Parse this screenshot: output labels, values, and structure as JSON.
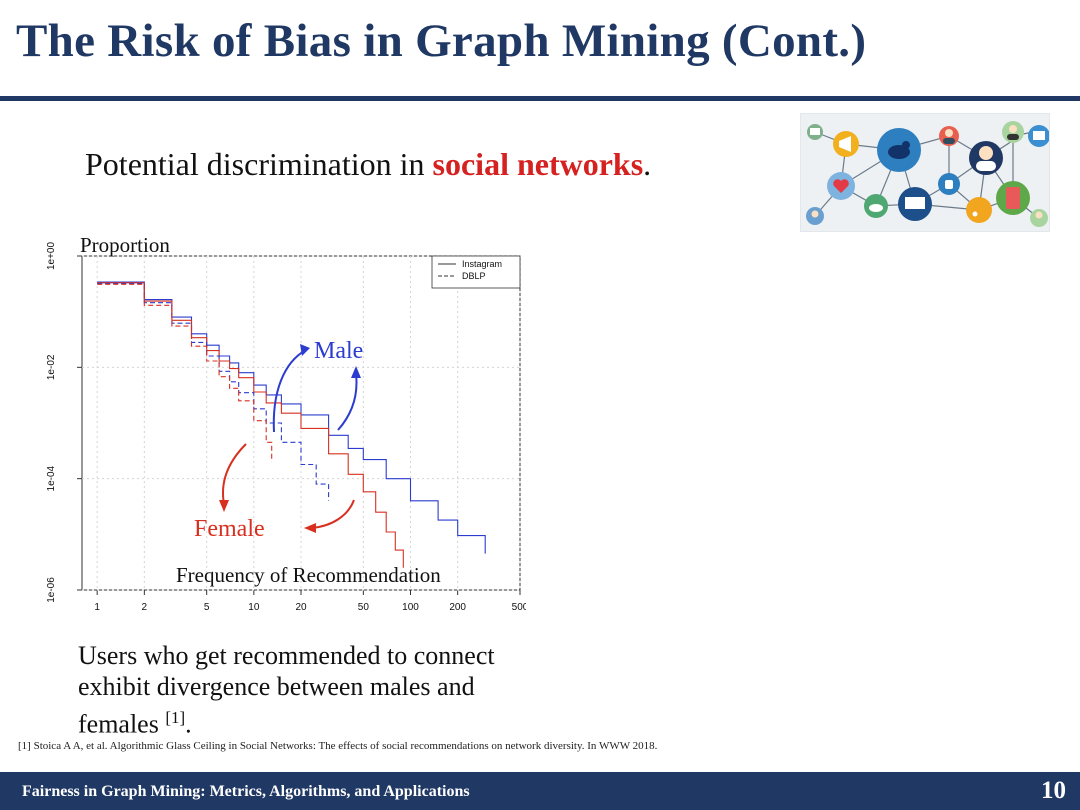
{
  "slide": {
    "title": "The Risk of Bias in Graph Mining (Cont.)",
    "subtitle_prefix": "Potential discrimination in ",
    "subtitle_highlight": "social networks",
    "subtitle_suffix": ".",
    "description": "Users who get recommended to connect exhibit divergence between males and females",
    "description_ref": "[1]",
    "description_end": ".",
    "reference": "[1] Stoica A A, et al. Algorithmic Glass Ceiling in Social Networks: The effects of social recommendations on network diversity. In WWW 2018.",
    "footer": "Fairness in Graph Mining: Metrics, Algorithms, and Applications",
    "page_number": "10"
  },
  "colors": {
    "title": "#1f3864",
    "highlight": "#d62121",
    "male": "#2b3ccf",
    "female": "#d83020"
  },
  "icons": [
    "envelope-icon",
    "megaphone-icon",
    "twitter-bird-icon",
    "user-icon",
    "user-icon",
    "video-icon",
    "heart-icon",
    "thumbs-up-icon",
    "phone-icon",
    "cloud-icon",
    "laptop-icon",
    "rss-icon",
    "user-icon"
  ],
  "chart_data": {
    "type": "line",
    "xscale": "log",
    "yscale": "log",
    "xlim": [
      0.8,
      500
    ],
    "ylim": [
      1e-06,
      1
    ],
    "x_ticks": [
      "1",
      "2",
      "5",
      "10",
      "20",
      "50",
      "100",
      "200",
      "500"
    ],
    "y_ticks": [
      "1e+00",
      "1e-02",
      "1e-04",
      "1e-06"
    ],
    "ylabel": "Proportion",
    "xlabel": "Frequency of Recommendation",
    "legend": {
      "placement": "top-right",
      "entries": [
        {
          "label": "Instagram",
          "style": "solid"
        },
        {
          "label": "DBLP",
          "style": "dashed"
        }
      ]
    },
    "annotations": [
      {
        "text": "Male",
        "color": "#2b3ccf"
      },
      {
        "text": "Female",
        "color": "#d83020"
      }
    ],
    "series": [
      {
        "dataset": "Instagram",
        "group": "Male",
        "style": "solid",
        "color": "#2b3ccf",
        "x": [
          1,
          2,
          3,
          4,
          5,
          6,
          7,
          8,
          10,
          12,
          15,
          20,
          30,
          40,
          50,
          70,
          100,
          150,
          200,
          300
        ],
        "y": [
          0.34,
          0.165,
          0.08,
          0.04,
          0.025,
          0.016,
          0.012,
          0.008,
          0.0048,
          0.0032,
          0.0022,
          0.0014,
          0.0006,
          0.00035,
          0.00022,
          0.0001,
          4e-05,
          1.8e-05,
          9.5e-06,
          4.5e-06
        ]
      },
      {
        "dataset": "Instagram",
        "group": "Female",
        "style": "solid",
        "color": "#d83020",
        "x": [
          1,
          2,
          3,
          4,
          5,
          6,
          7,
          8,
          10,
          12,
          15,
          20,
          30,
          40,
          50,
          60,
          70,
          80,
          90
        ],
        "y": [
          0.33,
          0.155,
          0.07,
          0.034,
          0.02,
          0.013,
          0.0095,
          0.0065,
          0.0036,
          0.0023,
          0.0015,
          0.0008,
          0.00028,
          0.00012,
          5.8e-05,
          2.5e-05,
          1.1e-05,
          5.2e-06,
          2.5e-06
        ]
      },
      {
        "dataset": "DBLP",
        "group": "Male",
        "style": "dashed",
        "color": "#2b3ccf",
        "x": [
          1,
          2,
          3,
          4,
          5,
          6,
          7,
          8,
          10,
          12,
          15,
          20,
          25,
          30
        ],
        "y": [
          0.32,
          0.145,
          0.062,
          0.028,
          0.016,
          0.0085,
          0.0055,
          0.0035,
          0.0018,
          0.001,
          0.00045,
          0.00018,
          8e-05,
          4e-05
        ]
      },
      {
        "dataset": "DBLP",
        "group": "Female",
        "style": "dashed",
        "color": "#d83020",
        "x": [
          1,
          2,
          3,
          4,
          5,
          6,
          7,
          8,
          10,
          12,
          13
        ],
        "y": [
          0.31,
          0.13,
          0.055,
          0.024,
          0.013,
          0.0068,
          0.0042,
          0.0025,
          0.0011,
          0.00045,
          0.0002
        ]
      }
    ]
  }
}
